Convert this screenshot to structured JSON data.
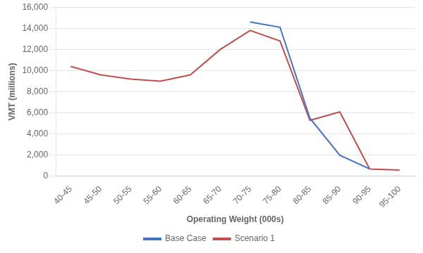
{
  "chart_data": {
    "type": "line",
    "categories": [
      "40-45",
      "45-50",
      "50-55",
      "55-60",
      "60-65",
      "65-70",
      "70-75",
      "75-80",
      "80-85",
      "85-90",
      "90-95",
      "95-100"
    ],
    "series": [
      {
        "name": "Base Case",
        "color": "#4472C4",
        "values": [
          null,
          null,
          null,
          null,
          null,
          null,
          14600,
          14100,
          5500,
          2000,
          700,
          null
        ]
      },
      {
        "name": "Scenario 1",
        "color": "#C0504D",
        "values": [
          10400,
          9600,
          9200,
          9000,
          9600,
          12000,
          13800,
          12800,
          5300,
          6100,
          700,
          600
        ]
      }
    ],
    "xlabel": "Operating Weight (000s)",
    "ylabel": "VMT (millions)",
    "ylim": [
      0,
      16000
    ],
    "yticks": [
      0,
      {
        "value": 2000,
        "label": "2,000"
      },
      {
        "value": 4000,
        "label": "4,000"
      },
      {
        "value": 6000,
        "label": "6,000"
      },
      {
        "value": 8000,
        "label": "8,000"
      },
      {
        "value": 10000,
        "label": "10,000"
      },
      {
        "value": 12000,
        "label": "12,000"
      },
      {
        "value": 14000,
        "label": "14,000"
      },
      {
        "value": 16000,
        "label": "16,000"
      }
    ],
    "grid": true,
    "legend": "bottom"
  }
}
